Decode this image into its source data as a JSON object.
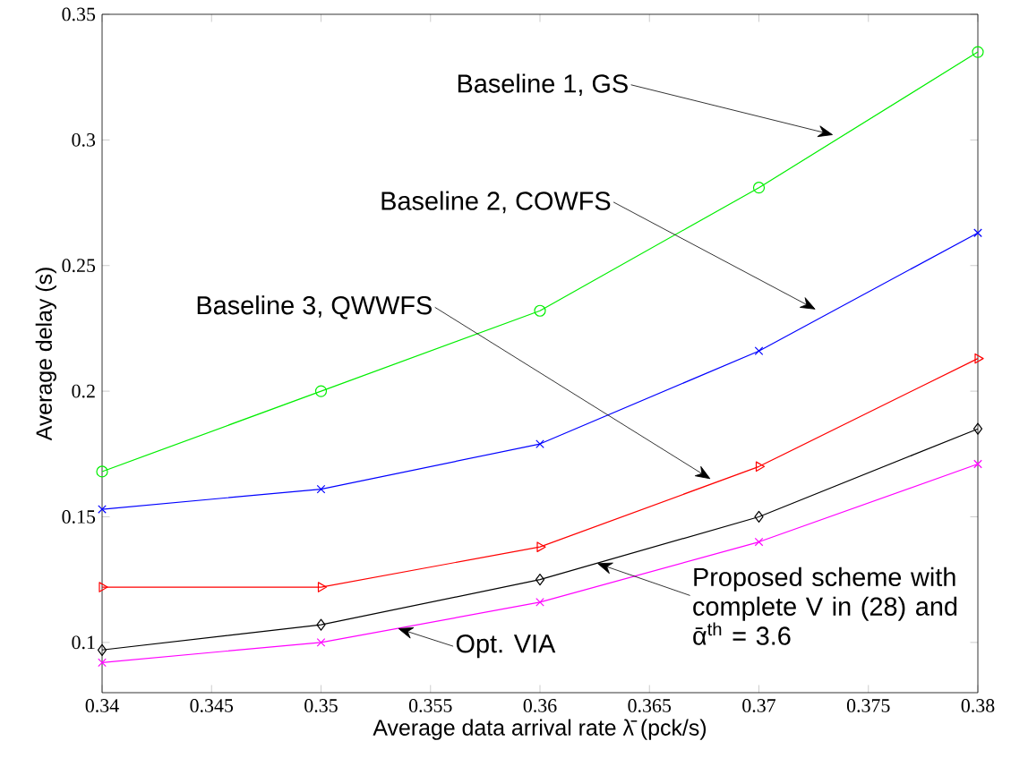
{
  "chart_data": {
    "type": "line",
    "x": [
      0.34,
      0.35,
      0.36,
      0.37,
      0.38
    ],
    "series": [
      {
        "color": "#00ee00",
        "marker": "circle",
        "values": [
          0.168,
          0.2,
          0.232,
          0.281,
          0.335
        ]
      },
      {
        "color": "#0000ff",
        "marker": "cross",
        "values": [
          0.153,
          0.161,
          0.179,
          0.216,
          0.263
        ]
      },
      {
        "color": "#ff0000",
        "marker": "triangle",
        "values": [
          0.122,
          0.122,
          0.138,
          0.17,
          0.213
        ]
      },
      {
        "color": "#000000",
        "marker": "diamond",
        "values": [
          0.097,
          0.107,
          0.125,
          0.15,
          0.185
        ]
      },
      {
        "color": "#ff00ff",
        "marker": "cross",
        "values": [
          0.092,
          0.1,
          0.116,
          0.14,
          0.171
        ]
      }
    ],
    "xlabel": "Average data arrival rate λ̄ (pck/s)",
    "ylabel": "Average delay (s)",
    "xlim": [
      0.34,
      0.38
    ],
    "ylim": [
      0.08,
      0.35
    ],
    "xticks": [
      0.34,
      0.345,
      0.35,
      0.355,
      0.36,
      0.365,
      0.37,
      0.375,
      0.38
    ],
    "yticks": [
      0.1,
      0.15,
      0.2,
      0.25,
      0.3,
      0.35
    ],
    "annotations": [
      {
        "text": "Baseline 1, GS",
        "x": 0.3734,
        "y": 0.302
      },
      {
        "text": "Baseline 2, COWFS",
        "x": 0.3726,
        "y": 0.2325
      },
      {
        "text": "Baseline 3, QWWFS",
        "x": 0.3678,
        "y": 0.165
      },
      {
        "text": "Proposed scheme with complete V in (28) and ᾱ$^{th}$ = 3.6",
        "x": 0.3626,
        "y": 0.1315
      },
      {
        "text": "Opt. VIA",
        "x": 0.3535,
        "y": 0.1056
      }
    ],
    "line_style": "solid"
  }
}
